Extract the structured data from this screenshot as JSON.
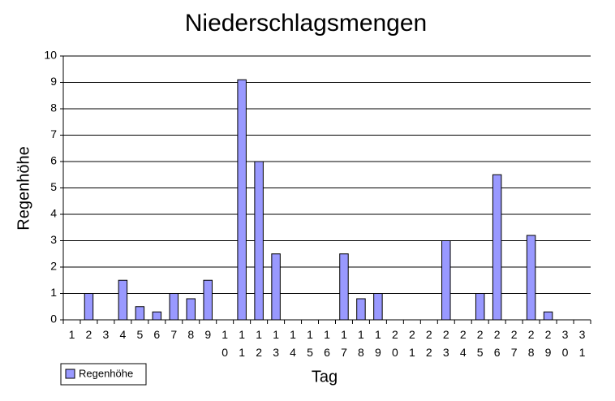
{
  "chart_data": {
    "type": "bar",
    "title": "Niederschlagsmengen",
    "x_label": "Tag",
    "y_label": "Regenhöhe",
    "categories": [
      "1",
      "2",
      "3",
      "4",
      "5",
      "6",
      "7",
      "8",
      "9",
      "10",
      "11",
      "12",
      "13",
      "14",
      "15",
      "16",
      "17",
      "18",
      "19",
      "20",
      "21",
      "22",
      "23",
      "24",
      "25",
      "26",
      "27",
      "28",
      "29",
      "30",
      "31"
    ],
    "series": [
      {
        "name": "Regenhöhe",
        "color": "#9999ff",
        "values": [
          0,
          1,
          0,
          1.5,
          0.5,
          0.3,
          1,
          0.8,
          1.5,
          0,
          9.1,
          6,
          2.5,
          0,
          0,
          0,
          2.5,
          0.8,
          1,
          0,
          0,
          0,
          3,
          0,
          1,
          5.5,
          0,
          3.2,
          0.3,
          0,
          0
        ]
      }
    ],
    "ylim": [
      0,
      10
    ],
    "yticks": [
      0,
      1,
      2,
      3,
      4,
      5,
      6,
      7,
      8,
      9,
      10
    ],
    "grid": true,
    "legend": "bottom-left"
  }
}
